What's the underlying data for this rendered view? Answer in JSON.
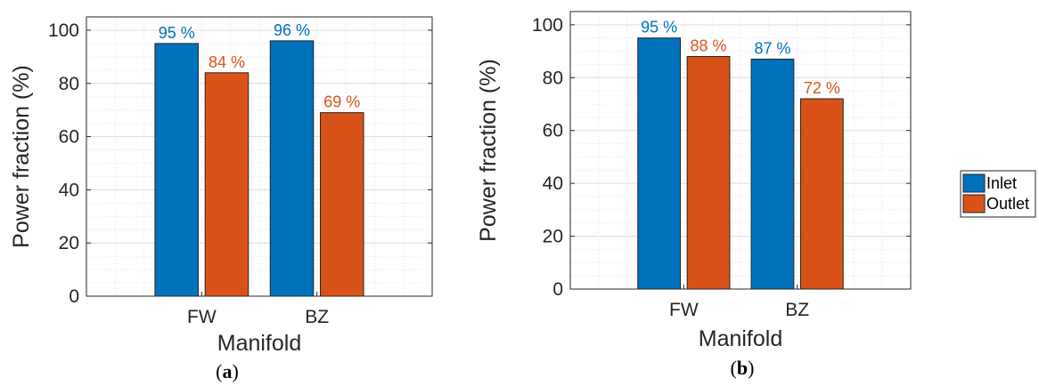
{
  "colors": {
    "inlet": "#0072BD",
    "outlet": "#D95319"
  },
  "legend": {
    "placement": "right",
    "items": [
      "Inlet",
      "Outlet"
    ]
  },
  "chart_data": [
    {
      "type": "bar",
      "panel_label": {
        "open": "(",
        "letter": "a",
        "close": ")"
      },
      "categories": [
        "FW",
        "BZ"
      ],
      "xlabel": "Manifold",
      "ylabel": "Power fraction (%)",
      "ylim": [
        0,
        105
      ],
      "yticks": [
        0,
        20,
        40,
        60,
        80,
        100
      ],
      "grid": true,
      "series": [
        {
          "name": "Inlet",
          "values": [
            95,
            96
          ],
          "labels": [
            "95 %",
            "96 %"
          ]
        },
        {
          "name": "Outlet",
          "values": [
            84,
            69
          ],
          "labels": [
            "84 %",
            "69 %"
          ]
        }
      ]
    },
    {
      "type": "bar",
      "panel_label": {
        "open": "(",
        "letter": "b",
        "close": ")"
      },
      "categories": [
        "FW",
        "BZ"
      ],
      "xlabel": "Manifold",
      "ylabel": "Power fraction (%)",
      "ylim": [
        0,
        105
      ],
      "yticks": [
        0,
        20,
        40,
        60,
        80,
        100
      ],
      "grid": true,
      "series": [
        {
          "name": "Inlet",
          "values": [
            95,
            87
          ],
          "labels": [
            "95 %",
            "87 %"
          ]
        },
        {
          "name": "Outlet",
          "values": [
            88,
            72
          ],
          "labels": [
            "88 %",
            "72 %"
          ]
        }
      ]
    }
  ]
}
